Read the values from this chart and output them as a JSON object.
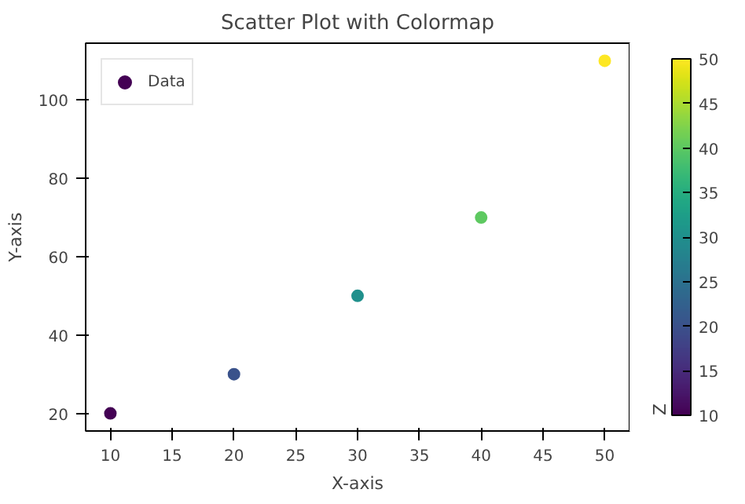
{
  "chart_data": {
    "type": "scatter",
    "title": "Scatter Plot with Colormap",
    "xlabel": "X-axis",
    "ylabel": "Y-axis",
    "clabel": "Z",
    "x": [
      10,
      20,
      30,
      40,
      50
    ],
    "series": [
      {
        "name": "Data",
        "values": [
          20,
          30,
          50,
          70,
          110
        ],
        "cvalues": [
          10,
          20,
          30,
          40,
          50
        ]
      }
    ],
    "xlim": [
      8,
      52
    ],
    "ylim": [
      15.5,
      114.5
    ],
    "xticks": [
      10,
      15,
      20,
      25,
      30,
      35,
      40,
      45,
      50
    ],
    "yticks": [
      20,
      40,
      60,
      80,
      100
    ],
    "clim": [
      10,
      50
    ],
    "cticks": [
      10,
      15,
      20,
      25,
      30,
      35,
      40,
      45,
      50
    ],
    "marker": "circle",
    "grid": false,
    "legend": "top left"
  }
}
